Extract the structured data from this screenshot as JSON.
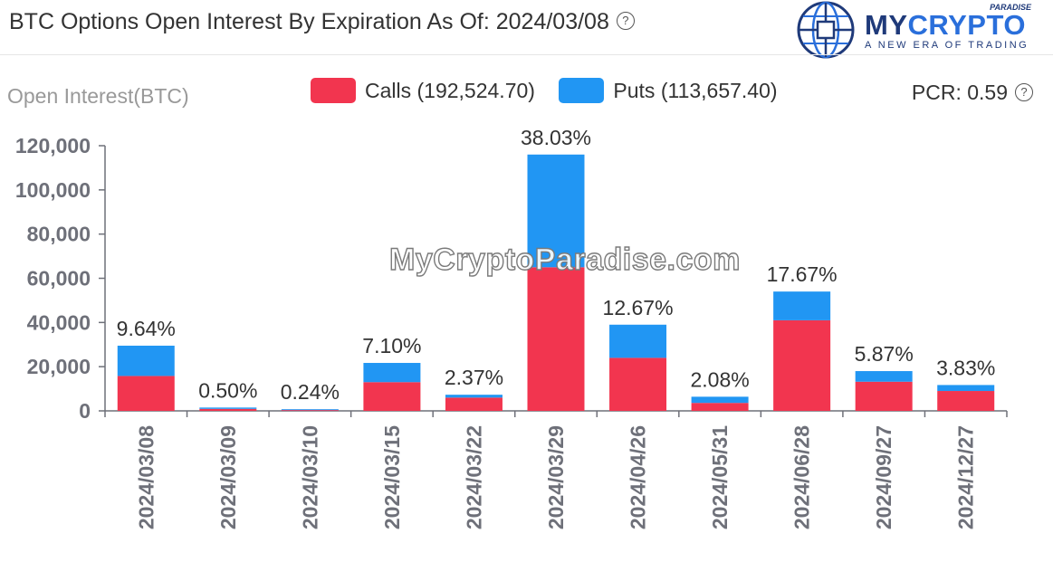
{
  "header": {
    "title": "BTC Options Open Interest By Expiration As Of: 2024/03/08",
    "help_glyph": "?"
  },
  "logo": {
    "name_part1": "MY",
    "name_part2": "CRYPTO",
    "superscript": "PARADISE",
    "tagline": "A NEW ERA OF TRADING"
  },
  "watermark": "MyCryptoParadise.com",
  "pcr": {
    "label": "PCR: 0.59",
    "help_glyph": "?"
  },
  "colors": {
    "calls": "#f2354f",
    "puts": "#2196f3",
    "axis": "#6e7079"
  },
  "chart_data": {
    "type": "bar",
    "stacked": true,
    "ylabel": "Open Interest(BTC)",
    "ylim": [
      0,
      120000
    ],
    "yticks": [
      "0",
      "20,000",
      "40,000",
      "60,000",
      "80,000",
      "100,000",
      "120,000"
    ],
    "categories": [
      "2024/03/08",
      "2024/03/09",
      "2024/03/10",
      "2024/03/15",
      "2024/03/22",
      "2024/03/29",
      "2024/04/26",
      "2024/05/31",
      "2024/06/28",
      "2024/09/27",
      "2024/12/27"
    ],
    "series": [
      {
        "name": "Calls (192,524.70)",
        "values": [
          15800,
          900,
          400,
          13000,
          6000,
          65000,
          24000,
          3600,
          41000,
          13200,
          9000
        ]
      },
      {
        "name": "Puts (113,657.40)",
        "values": [
          13700,
          600,
          340,
          8700,
          1300,
          51000,
          15000,
          2800,
          13000,
          4800,
          2700
        ]
      }
    ],
    "data_labels": [
      "9.64%",
      "0.50%",
      "0.24%",
      "7.10%",
      "2.37%",
      "38.03%",
      "12.67%",
      "2.08%",
      "17.67%",
      "5.87%",
      "3.83%"
    ],
    "legend_position": "top-center",
    "grid": false
  }
}
